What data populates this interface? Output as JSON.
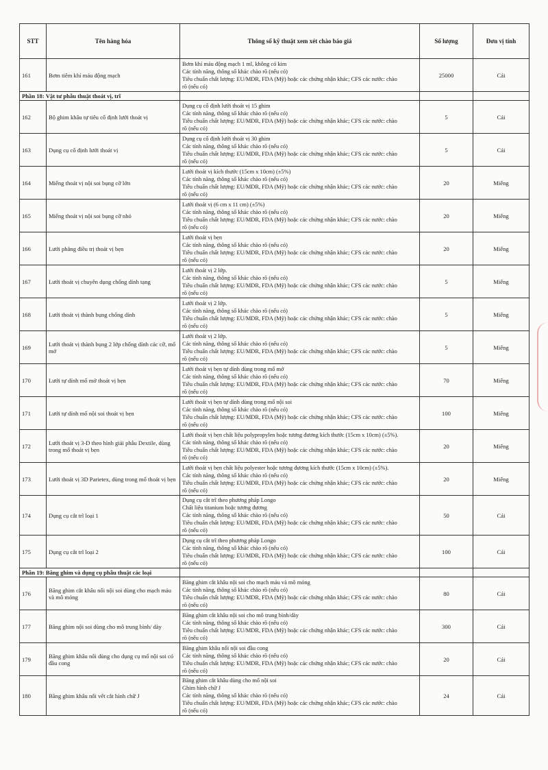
{
  "table": {
    "header": [
      "STT",
      "Tên hàng hóa",
      "Thông số kỹ thuật xem xét chào báo giá",
      "Số lượng",
      "Đơn vị tính"
    ],
    "rows": [
      {
        "stt": "161",
        "name": "Bơm tiêm khí máu động mạch",
        "spec": [
          "Bơm khí máu động mạch 1 ml, không có kim",
          "Các tính năng, thông số khác chào rõ (nếu có)",
          "Tiêu chuẩn chất lượng: EU/MDR, FDA (Mỹ) hoặc các chứng nhận khác; CFS các nước: chào",
          "rõ (nếu có)"
        ],
        "quantity": "25000",
        "unit": "Cái"
      },
      {
        "section": "Phần 18: Vật tư phẫu thuật thoát vị, trĩ"
      },
      {
        "stt": "162",
        "name": "Bộ ghim khâu tự tiêu cố định lưới thoát vị",
        "spec": [
          "Dụng cụ cố định lưới thoát vị 15 ghim",
          "Các tính năng, thông số khác chào rõ (nếu có)",
          "Tiêu chuẩn chất lượng: EU/MDR, FDA (Mỹ) hoặc các chứng nhận khác; CFS các nước: chào",
          "rõ (nếu có)"
        ],
        "quantity": "5",
        "unit": "Cái"
      },
      {
        "stt": "163",
        "name": "Dụng cụ cố định lưới thoát vị",
        "spec": [
          "Dụng cụ cố định lưới thoát vị 30 ghim",
          "Các tính năng, thông số khác chào rõ (nếu có)",
          "Tiêu chuẩn chất lượng: EU/MDR, FDA (Mỹ) hoặc các chứng nhận khác; CFS các nước: chào",
          "rõ (nếu có)"
        ],
        "quantity": "5",
        "unit": "Cái"
      },
      {
        "stt": "164",
        "name": "Miếng thoát vị nội soi bụng cỡ lớn",
        "spec": [
          "Lưới thoát vị kích thước (15cm x 10cm) (±5%)",
          "Các tính năng, thông số khác chào rõ (nếu có)",
          "Tiêu chuẩn chất lượng: EU/MDR, FDA (Mỹ) hoặc các chứng nhận khác; CFS các nước: chào",
          "rõ (nếu có)"
        ],
        "quantity": "20",
        "unit": "Miếng"
      },
      {
        "stt": "165",
        "name": "Miếng thoát vị nội soi bụng cỡ nhỏ",
        "spec": [
          "Lưới thoát vị (6 cm x 11 cm) (±5%)",
          "Các tính năng, thông số khác chào rõ (nếu có)",
          "Tiêu chuẩn chất lượng: EU/MDR, FDA (Mỹ) hoặc các chứng nhận khác; CFS các nước: chào",
          "rõ (nếu có)"
        ],
        "quantity": "20",
        "unit": "Miếng"
      },
      {
        "stt": "166",
        "name": "Lưới phẳng điều trị thoát vị bẹn",
        "spec": [
          "Lưới thoát vị bẹn",
          "Các tính năng, thông số khác chào rõ (nếu có)",
          "Tiêu chuẩn chất lượng: EU/MDR, FDA (Mỹ) hoặc các chứng nhận khác; CFS các nước: chào",
          "rõ (nếu có)"
        ],
        "quantity": "20",
        "unit": "Miếng"
      },
      {
        "stt": "167",
        "name": "Lưới thoát vị chuyên dụng chống dính tạng",
        "spec": [
          "Lưới thoát vị 2 lớp.",
          "Các tính năng, thông số khác chào rõ (nếu có)",
          "Tiêu chuẩn chất lượng: EU/MDR, FDA (Mỹ) hoặc các chứng nhận khác; CFS các nước: chào",
          "rõ (nếu có)"
        ],
        "quantity": "5",
        "unit": "Miếng"
      },
      {
        "stt": "168",
        "name": "Lưới thoát vị thành bụng chống dính",
        "spec": [
          "Lưới thoát vị 2 lớp.",
          "Các tính năng, thông số khác chào rõ (nếu có)",
          "Tiêu chuẩn chất lượng: EU/MDR, FDA (Mỹ) hoặc các chứng nhận khác; CFS các nước: chào",
          "rõ (nếu có)"
        ],
        "quantity": "5",
        "unit": "Miếng"
      },
      {
        "stt": "169",
        "name": "Lưới thoát vị thành bụng 2 lớp chống dính các cỡ, mổ mở",
        "spec": [
          "Lưới thoát vị 2 lớp.",
          "Các tính năng, thông số khác chào rõ (nếu có)",
          "Tiêu chuẩn chất lượng: EU/MDR, FDA (Mỹ) hoặc các chứng nhận khác; CFS các nước: chào",
          "rõ (nếu có)"
        ],
        "quantity": "5",
        "unit": "Miếng"
      },
      {
        "stt": "170",
        "name": "Lưới tự dính mổ mở thoát vị bẹn",
        "spec": [
          "Lưới thoát vị bẹn tự dính dùng trong mổ mở",
          "Các tính năng, thông số khác chào rõ (nếu có)",
          "Tiêu chuẩn chất lượng: EU/MDR, FDA (Mỹ) hoặc các chứng nhận khác; CFS các nước: chào",
          "rõ (nếu có)"
        ],
        "quantity": "70",
        "unit": "Miếng"
      },
      {
        "stt": "171",
        "name": "Lưới tự dính mổ nội soi thoát vị bẹn",
        "spec": [
          "Lưới thoát vị bẹn tự dính dùng trong mổ nội soi",
          "Các tính năng, thông số khác chào rõ (nếu có)",
          "Tiêu chuẩn chất lượng: EU/MDR, FDA (Mỹ) hoặc các chứng nhận khác; CFS các nước: chào",
          "rõ (nếu có)"
        ],
        "quantity": "100",
        "unit": "Miếng"
      },
      {
        "stt": "172",
        "name": "Lưới thoát vị 3-D theo hình giải phẫu Dextile, dùng trong mổ thoát vị bẹn",
        "spec": [
          "Lưới thoát vị bẹn chất liệu polypropylen hoặc tương đương kích thước (15cm x 10cm) (±5%).",
          "Các tính năng, thông số khác chào rõ (nếu có)",
          "Tiêu chuẩn chất lượng: EU/MDR, FDA (Mỹ) hoặc các chứng nhận khác; CFS các nước: chào",
          "rõ (nếu có)"
        ],
        "quantity": "20",
        "unit": "Miếng"
      },
      {
        "stt": "173",
        "name": "Lưới thoát vị 3D Parietex, dùng trong mổ thoát vị bẹn",
        "spec": [
          "Lưới thoát vị bẹn chất liệu polyester hoặc tương đương kích thước (15cm x 10cm) (±5%).",
          "Các tính năng, thông số khác chào rõ (nếu có)",
          "Tiêu chuẩn chất lượng: EU/MDR, FDA (Mỹ) hoặc các chứng nhận khác; CFS các nước: chào",
          "rõ (nếu có)"
        ],
        "quantity": "20",
        "unit": "Miếng"
      },
      {
        "stt": "174",
        "name": "Dụng cụ cắt trĩ loại 1",
        "spec": [
          "Dụng cụ cắt trĩ theo phương pháp Longo",
          "Chất liệu titanium hoặc tương đương",
          "Các tính năng, thông số khác chào rõ (nếu có)",
          "Tiêu chuẩn chất lượng: EU/MDR, FDA (Mỹ) hoặc các chứng nhận khác; CFS các nước: chào",
          "rõ (nếu có)"
        ],
        "quantity": "50",
        "unit": "Cái"
      },
      {
        "stt": "175",
        "name": "Dụng cụ cắt trĩ loại 2",
        "spec": [
          "Dụng cụ cắt trĩ theo phương pháp Longo",
          "Các tính năng, thông số khác chào rõ (nếu có)",
          "Tiêu chuẩn chất lượng: EU/MDR, FDA (Mỹ) hoặc các chứng nhận khác; CFS các nước: chào",
          "rõ (nếu có)"
        ],
        "quantity": "100",
        "unit": "Cái"
      },
      {
        "section": "Phần 19: Băng ghim và dụng cụ phẫu thuật các loại"
      },
      {
        "stt": "176",
        "name": "Băng ghim cắt khâu nối nội soi dùng cho mạch máu và mô mỏng",
        "spec": [
          "Băng ghim cắt khâu nội soi cho mạch máu và mô mỏng",
          "Các tính năng, thông số khác chào rõ (nếu có)",
          "Tiêu chuẩn chất lượng: EU/MDR, FDA (Mỹ) hoặc các chứng nhận khác; CFS các nước: chào",
          "rõ (nếu có)"
        ],
        "quantity": "80",
        "unit": "Cái"
      },
      {
        "stt": "177",
        "name": "Băng ghim nội soi dùng cho mô trung bình/ dày",
        "spec": [
          "Băng ghim cắt khâu nội soi cho mô trung bình/dày",
          "Các tính năng, thông số khác chào rõ (nếu có)",
          "Tiêu chuẩn chất lượng: EU/MDR, FDA (Mỹ) hoặc các chứng nhận khác; CFS các nước: chào",
          "rõ (nếu có)"
        ],
        "quantity": "300",
        "unit": "Cái"
      },
      {
        "stt": "179",
        "name": "Băng ghim khâu nối dùng cho dụng cụ mổ nội soi có đầu cong",
        "spec": [
          "Băng ghim khâu nối nội soi đầu cong",
          "Các tính năng, thông số khác chào rõ (nếu có)",
          "Tiêu chuẩn chất lượng: EU/MDR, FDA (Mỹ) hoặc các chứng nhận khác; CFS các nước: chào",
          "rõ (nếu có)"
        ],
        "quantity": "20",
        "unit": "Cái"
      },
      {
        "stt": "180",
        "name": "Băng ghim khâu nối vết cắt hình chữ J",
        "spec": [
          "Băng ghim cắt khâu dùng cho mổ nội soi",
          "Ghim hình chữ J",
          "Các tính năng, thông số khác chào rõ (nếu có)",
          "Tiêu chuẩn chất lượng: EU/MDR, FDA (Mỹ) hoặc các chứng nhận khác; CFS các nước: chào",
          "rõ (nếu có)"
        ],
        "quantity": "24",
        "unit": "Cái"
      }
    ]
  }
}
